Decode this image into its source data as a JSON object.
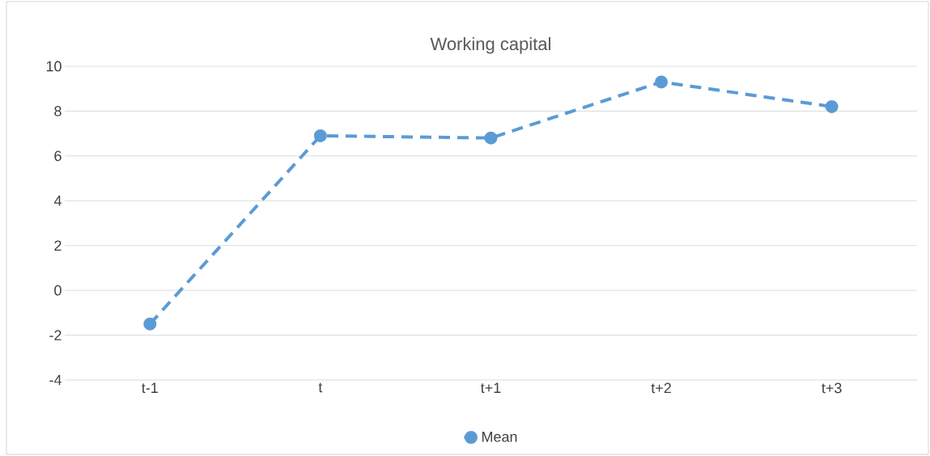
{
  "chart_data": {
    "type": "line",
    "title": "Working capital",
    "categories": [
      "t-1",
      "t",
      "t+1",
      "t+2",
      "t+3"
    ],
    "series": [
      {
        "name": "Mean",
        "color": "#5b9bd5",
        "values": [
          -1.5,
          6.9,
          6.8,
          9.3,
          8.2
        ]
      }
    ],
    "ylim": [
      -4,
      10
    ],
    "yticks": [
      -4,
      -2,
      0,
      2,
      4,
      6,
      8,
      10
    ],
    "grid": "y",
    "legend": "bottom",
    "marker": "circle",
    "line_style": "dashed"
  }
}
